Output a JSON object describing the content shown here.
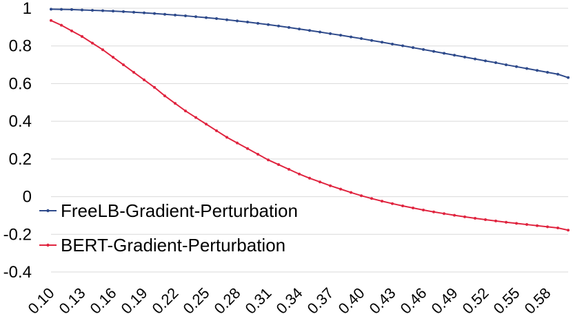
{
  "chart_data": {
    "type": "line",
    "title": "",
    "xlabel": "",
    "ylabel": "",
    "x": [
      0.1,
      0.11,
      0.12,
      0.13,
      0.14,
      0.15,
      0.16,
      0.17,
      0.18,
      0.19,
      0.2,
      0.21,
      0.22,
      0.23,
      0.24,
      0.25,
      0.26,
      0.27,
      0.28,
      0.29,
      0.3,
      0.31,
      0.32,
      0.33,
      0.34,
      0.35,
      0.36,
      0.37,
      0.38,
      0.39,
      0.4,
      0.41,
      0.42,
      0.43,
      0.44,
      0.45,
      0.46,
      0.47,
      0.48,
      0.49,
      0.5,
      0.51,
      0.52,
      0.53,
      0.54,
      0.55,
      0.56,
      0.57,
      0.58,
      0.59,
      0.6
    ],
    "x_tick_labels": [
      "0.10",
      "0.13",
      "0.16",
      "0.19",
      "0.22",
      "0.25",
      "0.28",
      "0.31",
      "0.34",
      "0.37",
      "0.40",
      "0.43",
      "0.46",
      "0.49",
      "0.52",
      "0.55",
      "0.58"
    ],
    "y_ticks": [
      1,
      0.8,
      0.6,
      0.4,
      0.2,
      0,
      -0.2,
      -0.4
    ],
    "y_tick_labels": [
      "1",
      "0.8",
      "0.6",
      "0.4",
      "0.2",
      "0",
      "-0.2",
      "-0.4"
    ],
    "ylim": [
      -0.4,
      1
    ],
    "xlim": [
      0.1,
      0.6
    ],
    "grid": true,
    "legend_position": "middle-left",
    "series": [
      {
        "name": "FreeLB-Gradient-Perturbation",
        "color": "#2E4A8B",
        "values": [
          0.995,
          0.994,
          0.993,
          0.991,
          0.989,
          0.987,
          0.985,
          0.982,
          0.979,
          0.976,
          0.972,
          0.968,
          0.964,
          0.96,
          0.955,
          0.95,
          0.945,
          0.939,
          0.933,
          0.927,
          0.92,
          0.913,
          0.906,
          0.898,
          0.89,
          0.882,
          0.874,
          0.865,
          0.857,
          0.848,
          0.839,
          0.829,
          0.82,
          0.81,
          0.801,
          0.791,
          0.781,
          0.771,
          0.761,
          0.751,
          0.741,
          0.731,
          0.721,
          0.711,
          0.7,
          0.69,
          0.68,
          0.67,
          0.66,
          0.65,
          0.632
        ]
      },
      {
        "name": "BERT-Gradient-Perturbation",
        "color": "#E0243F",
        "values": [
          0.935,
          0.91,
          0.88,
          0.85,
          0.815,
          0.78,
          0.74,
          0.7,
          0.66,
          0.62,
          0.58,
          0.535,
          0.495,
          0.455,
          0.42,
          0.385,
          0.35,
          0.315,
          0.285,
          0.255,
          0.225,
          0.195,
          0.17,
          0.145,
          0.12,
          0.098,
          0.078,
          0.058,
          0.04,
          0.022,
          0.005,
          -0.01,
          -0.024,
          -0.037,
          -0.049,
          -0.06,
          -0.071,
          -0.081,
          -0.09,
          -0.099,
          -0.107,
          -0.115,
          -0.122,
          -0.129,
          -0.136,
          -0.142,
          -0.148,
          -0.154,
          -0.16,
          -0.166,
          -0.178
        ]
      }
    ]
  }
}
